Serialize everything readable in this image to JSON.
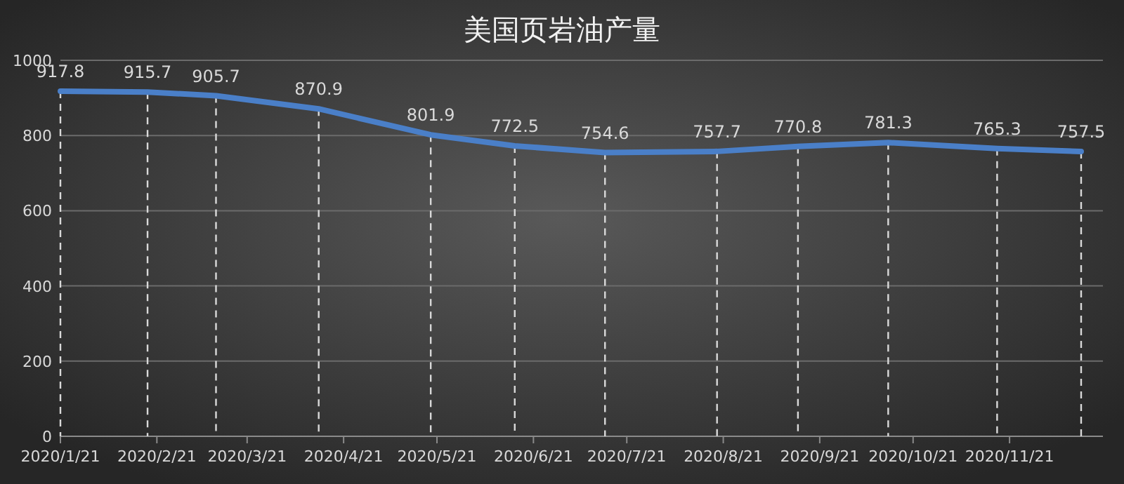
{
  "chart_data": {
    "type": "line",
    "title": "美国页岩油产量",
    "x": [
      "2020-01-21",
      "2020-02-18",
      "2020-03-11",
      "2020-04-13",
      "2020-05-19",
      "2020-06-15",
      "2020-07-14",
      "2020-08-19",
      "2020-09-14",
      "2020-10-13",
      "2020-11-17",
      "2020-12-14"
    ],
    "series": [
      {
        "color": "#4a7fc8",
        "values": [
          917.8,
          915.7,
          905.7,
          870.9,
          801.9,
          772.5,
          754.6,
          757.7,
          770.8,
          781.3,
          765.3,
          757.5
        ]
      }
    ],
    "xlim": [
      "2020-01-21",
      "2020-12-21"
    ],
    "xticks": [
      {
        "value": "2020-01-21",
        "label": "2020/1/21"
      },
      {
        "value": "2020-02-21",
        "label": "2020/2/21"
      },
      {
        "value": "2020-03-21",
        "label": "2020/3/21"
      },
      {
        "value": "2020-04-21",
        "label": "2020/4/21"
      },
      {
        "value": "2020-05-21",
        "label": "2020/5/21"
      },
      {
        "value": "2020-06-21",
        "label": "2020/6/21"
      },
      {
        "value": "2020-07-21",
        "label": "2020/7/21"
      },
      {
        "value": "2020-08-21",
        "label": "2020/8/21"
      },
      {
        "value": "2020-09-21",
        "label": "2020/9/21"
      },
      {
        "value": "2020-10-21",
        "label": "2020/10/21"
      },
      {
        "value": "2020-11-21",
        "label": "2020/11/21"
      }
    ],
    "ylim": [
      0,
      1000
    ],
    "yticks": [
      0,
      200,
      400,
      600,
      800,
      1000
    ],
    "grid": "y",
    "data_labels": true,
    "marker": "none",
    "line_style": "solid"
  }
}
